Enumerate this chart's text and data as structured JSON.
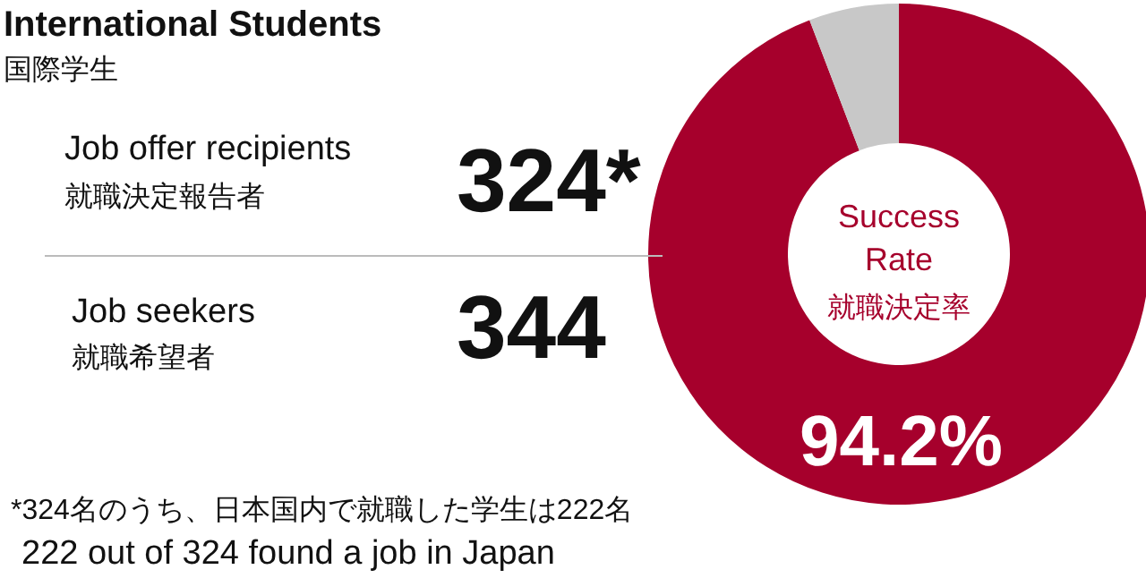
{
  "chart_data": {
    "type": "donut",
    "title": "International Students",
    "subtitle": "国際学生",
    "categories": [
      null,
      null
    ],
    "values": [
      94.2,
      5.8
    ],
    "colors": [
      "#a6002c",
      "#c8c8c8"
    ],
    "value_labels": [
      "94.2%",
      null
    ],
    "annotations": [
      "Job offer recipients",
      "就職決定報告者",
      "324*",
      "Job seekers",
      "就職希望者",
      "344",
      "Success Rate",
      "就職決定率",
      "*324名のうち、日本国内で就職した学生は222名",
      "222 out of 324 found a job in Japan"
    ]
  }
}
